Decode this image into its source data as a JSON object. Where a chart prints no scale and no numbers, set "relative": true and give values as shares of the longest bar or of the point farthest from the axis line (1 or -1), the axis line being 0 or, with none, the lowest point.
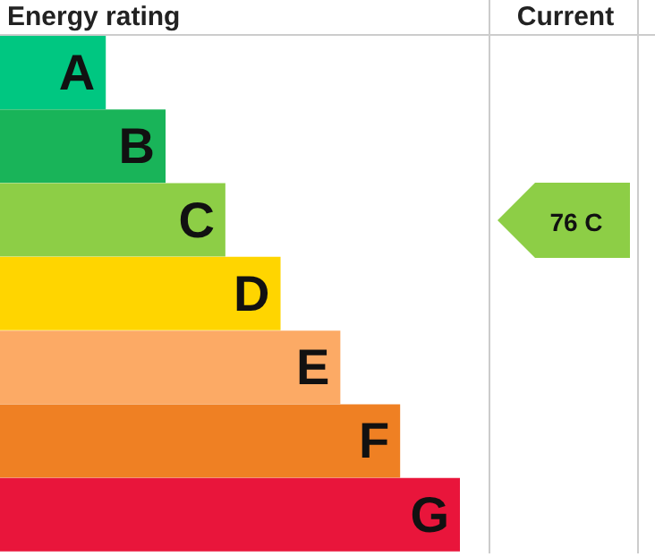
{
  "chart_data": {
    "type": "bar",
    "orientation": "horizontal",
    "relative": true,
    "title": "Energy rating",
    "categories": [
      "A",
      "B",
      "C",
      "D",
      "E",
      "F",
      "G"
    ],
    "values": [
      0.23,
      0.36,
      0.49,
      0.61,
      0.74,
      0.87,
      1
    ],
    "colors": [
      "#00c781",
      "#19b459",
      "#8dce46",
      "#ffd500",
      "#fcaa65",
      "#ef8023",
      "#e9153b"
    ],
    "annotations": [
      "Current",
      "76 C"
    ]
  }
}
